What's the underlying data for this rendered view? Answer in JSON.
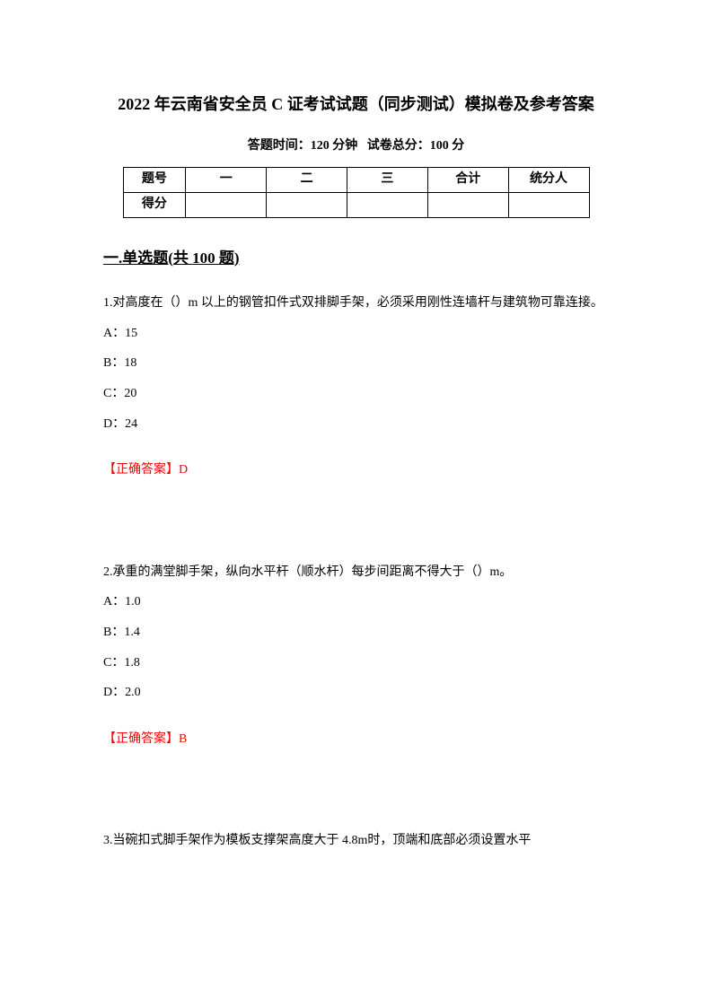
{
  "document": {
    "title": "2022 年云南省安全员 C 证考试试题（同步测试）模拟卷及参考答案",
    "subtitle_time": "答题时间：120 分钟",
    "subtitle_score": "试卷总分：100 分",
    "score_table": {
      "headers": [
        "题号",
        "一",
        "二",
        "三",
        "合计",
        "统分人"
      ],
      "row2_label": "得分"
    },
    "section1": {
      "heading": "一.单选题(共 100 题)"
    },
    "questions": [
      {
        "number": "1.",
        "text": "对高度在（）m 以上的钢管扣件式双排脚手架，必须采用刚性连墙杆与建筑物可靠连接。",
        "options": {
          "a": "A：15",
          "b": "B：18",
          "c": "C：20",
          "d": "D：24"
        },
        "answer_label": "【正确答案】",
        "answer_value": "D"
      },
      {
        "number": "2.",
        "text": "承重的满堂脚手架，纵向水平杆（顺水杆）每步间距离不得大于（）m。",
        "options": {
          "a": "A：1.0",
          "b": "B：1.4",
          "c": "C：1.8",
          "d": "D：2.0"
        },
        "answer_label": "【正确答案】",
        "answer_value": "B"
      },
      {
        "number": "3.",
        "text": "当碗扣式脚手架作为模板支撑架高度大于 4.8m时，顶端和底部必须设置水平"
      }
    ]
  }
}
